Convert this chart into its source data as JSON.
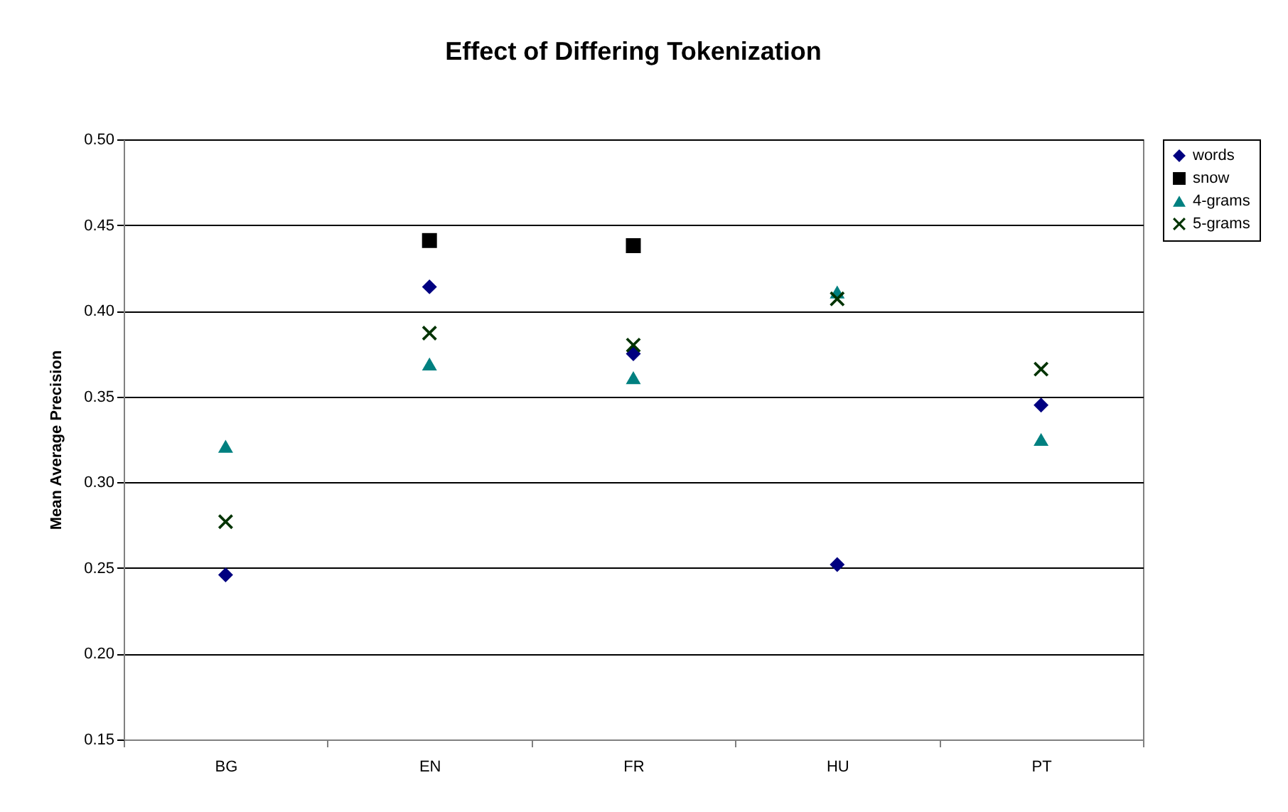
{
  "chart_data": {
    "type": "scatter",
    "title": "Effect of Differing Tokenization",
    "ylabel": "Mean Average Precision",
    "categories": [
      "BG",
      "EN",
      "FR",
      "HU",
      "PT"
    ],
    "series": [
      {
        "name": "words",
        "color": "#000080",
        "marker": "diamond",
        "values": [
          0.246,
          0.414,
          0.375,
          0.252,
          0.345
        ]
      },
      {
        "name": "snow",
        "color": "#000000",
        "marker": "square",
        "values": [
          null,
          0.441,
          0.438,
          null,
          null
        ]
      },
      {
        "name": "4-grams",
        "color": "#008080",
        "marker": "triangle",
        "values": [
          0.321,
          0.369,
          0.361,
          0.411,
          0.325
        ]
      },
      {
        "name": "5-grams",
        "color": "#003300",
        "marker": "cross",
        "values": [
          0.277,
          0.387,
          0.38,
          0.407,
          0.366
        ]
      }
    ],
    "ylim": [
      0.15,
      0.5
    ],
    "yticks": [
      {
        "value": 0.15,
        "label": "0.15"
      },
      {
        "value": 0.2,
        "label": "0.20"
      },
      {
        "value": 0.25,
        "label": "0.25"
      },
      {
        "value": 0.3,
        "label": "0.30"
      },
      {
        "value": 0.35,
        "label": "0.35"
      },
      {
        "value": 0.4,
        "label": "0.40"
      },
      {
        "value": 0.45,
        "label": "0.45"
      },
      {
        "value": 0.5,
        "label": "0.50"
      }
    ],
    "grid": "y",
    "legend": "right"
  }
}
